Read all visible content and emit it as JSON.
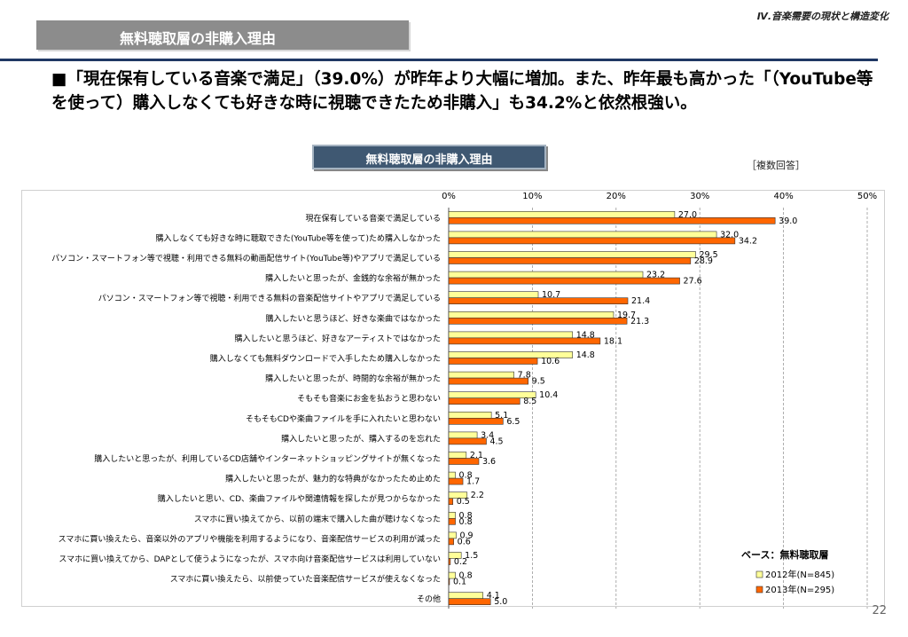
{
  "header": {
    "section": "Ⅳ.音楽需要の現状と構造変化",
    "title": "無料聴取層の非購入理由"
  },
  "lead": {
    "text": "■「現在保有している音楽で満足」（39.0%）が昨年より大幅に増加。また、昨年最も高かった「（YouTube等を使って）購入しなくても好きな時に視聴できたため非購入」も34.2%と依然根強い。"
  },
  "chart_box_title": "無料聴取層の非購入理由",
  "multiple_answer_note": "［複数回答］",
  "base_note": "ベース：無料聴取層",
  "page_number": "22",
  "colors": {
    "series_2012": "#ffff99",
    "series_2013": "#ff6600",
    "title_box": "#8c8c8c",
    "rule": "#1f3864"
  },
  "chart_data": {
    "type": "bar",
    "orientation": "horizontal",
    "xlim": [
      0,
      50
    ],
    "ticks": [
      "0%",
      "10%",
      "20%",
      "30%",
      "40%",
      "50%"
    ],
    "tick_values": [
      0,
      10,
      20,
      30,
      40,
      50
    ],
    "grid": true,
    "legend_position": "bottom-right",
    "categories": [
      "現在保有している音楽で満足している",
      "購入しなくても好きな時に聴取できた(YouTube等を使って)ため購入しなかった",
      "パソコン・スマートフォン等で視聴・利用できる無料の動画配信サイト(YouTube等)やアプリで満足している",
      "購入したいと思ったが、金銭的な余裕が無かった",
      "パソコン・スマートフォン等で視聴・利用できる無料の音楽配信サイトやアプリで満足している",
      "購入したいと思うほど、好きな楽曲ではなかった",
      "購入したいと思うほど、好きなアーティストではなかった",
      "購入しなくても無料ダウンロードで入手したため購入しなかった",
      "購入したいと思ったが、時間的な余裕が無かった",
      "そもそも音楽にお金を払おうと思わない",
      "そもそもCDや楽曲ファイルを手に入れたいと思わない",
      "購入したいと思ったが、購入するのを忘れた",
      "購入したいと思ったが、利用しているCD店舗やインターネットショッピングサイトが無くなった",
      "購入したいと思ったが、魅力的な特典がなかったため止めた",
      "購入したいと思い、CD、楽曲ファイルや関連情報を探したが見つからなかった",
      "スマホに買い換えてから、以前の端末で購入した曲が聴けなくなった",
      "スマホに買い換えたら、音楽以外のアプリや機能を利用するようになり、音楽配信サービスの利用が減った",
      "スマホに買い換えてから、DAPとして使うようになったが、スマホ向け音楽配信サービスは利用していない",
      "スマホに買い換えたら、以前使っていた音楽配信サービスが使えなくなった",
      "その他"
    ],
    "series": [
      {
        "name": "2012年(N=845)",
        "color": "#ffff99",
        "values": [
          27.0,
          32.0,
          29.5,
          23.2,
          10.7,
          19.7,
          14.8,
          14.8,
          7.8,
          10.4,
          5.1,
          3.4,
          2.1,
          0.8,
          2.2,
          0.8,
          0.9,
          1.5,
          0.8,
          4.1
        ],
        "labels": [
          "27.0",
          "32.0",
          "29.5",
          "23.2",
          "10.7",
          "19.7",
          "14.8",
          "14.8",
          "7.8",
          "10.4",
          "5.1",
          "3.4",
          "2.1",
          "0.8",
          "2.2",
          "0.8",
          "0.9",
          "1.5",
          "0.8",
          "4.1"
        ]
      },
      {
        "name": "2013年(N=295)",
        "color": "#ff6600",
        "values": [
          39.0,
          34.2,
          28.9,
          27.6,
          21.4,
          21.3,
          18.1,
          10.6,
          9.5,
          8.5,
          6.5,
          4.5,
          3.6,
          1.7,
          0.5,
          0.8,
          0.6,
          0.2,
          0.1,
          5.0
        ],
        "labels": [
          "39.0",
          "34.2",
          "28.9",
          "27.6",
          "21.4",
          "21.3",
          "18.1",
          "10.6",
          "9.5",
          "8.5",
          "6.5",
          "4.5",
          "3.6",
          "1.7",
          "0.5",
          "0.8",
          "0.6",
          "0.2",
          "0.1",
          "5.0"
        ]
      }
    ]
  }
}
